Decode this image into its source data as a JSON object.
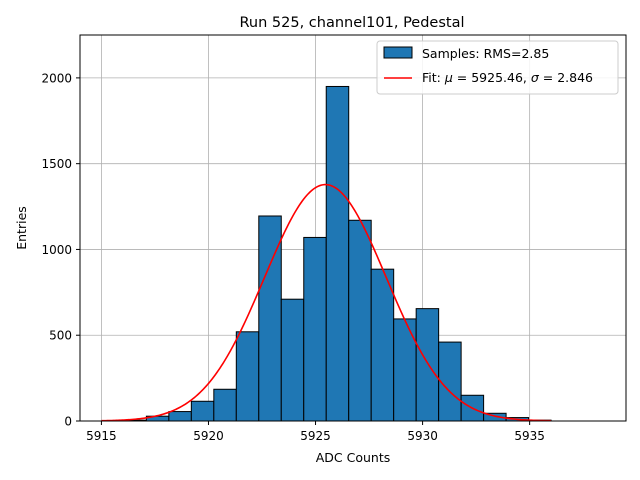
{
  "chart_data": {
    "type": "bar",
    "title": "Run 525, channel101, Pedestal",
    "xlabel": "ADC Counts",
    "ylabel": "Entries",
    "xlim": [
      5914,
      5939.5
    ],
    "ylim": [
      0,
      2250
    ],
    "xticks": [
      5915,
      5920,
      5925,
      5930,
      5935
    ],
    "yticks": [
      0,
      500,
      1000,
      1500,
      2000
    ],
    "grid": true,
    "legend_position": "top-right",
    "bin_width": 1.05,
    "bins": [
      {
        "x": 5915.0,
        "value": 0
      },
      {
        "x": 5916.05,
        "value": 5
      },
      {
        "x": 5917.1,
        "value": 28
      },
      {
        "x": 5918.15,
        "value": 55
      },
      {
        "x": 5919.2,
        "value": 115
      },
      {
        "x": 5920.25,
        "value": 185
      },
      {
        "x": 5921.3,
        "value": 520
      },
      {
        "x": 5922.35,
        "value": 1195
      },
      {
        "x": 5923.4,
        "value": 710
      },
      {
        "x": 5924.45,
        "value": 1070
      },
      {
        "x": 5925.5,
        "value": 1950
      },
      {
        "x": 5926.55,
        "value": 1170
      },
      {
        "x": 5927.6,
        "value": 885
      },
      {
        "x": 5928.65,
        "value": 595
      },
      {
        "x": 5929.7,
        "value": 655
      },
      {
        "x": 5930.75,
        "value": 460
      },
      {
        "x": 5931.8,
        "value": 150
      },
      {
        "x": 5932.85,
        "value": 45
      },
      {
        "x": 5933.9,
        "value": 20
      },
      {
        "x": 5934.95,
        "value": 5
      }
    ],
    "series": [
      {
        "name": "Samples: RMS=2.85",
        "kind": "histogram",
        "color": "#1f77b4"
      },
      {
        "name_prefix": "Fit: ",
        "name_mu": "μ",
        "name_mid": " = 5925.46, ",
        "name_sigma": "σ",
        "name_suffix": " = 2.846",
        "kind": "gaussian",
        "color": "#ff0000",
        "mu": 5925.46,
        "sigma": 2.846,
        "amplitude": 1378,
        "x_range": [
          5915,
          5936
        ]
      }
    ]
  }
}
